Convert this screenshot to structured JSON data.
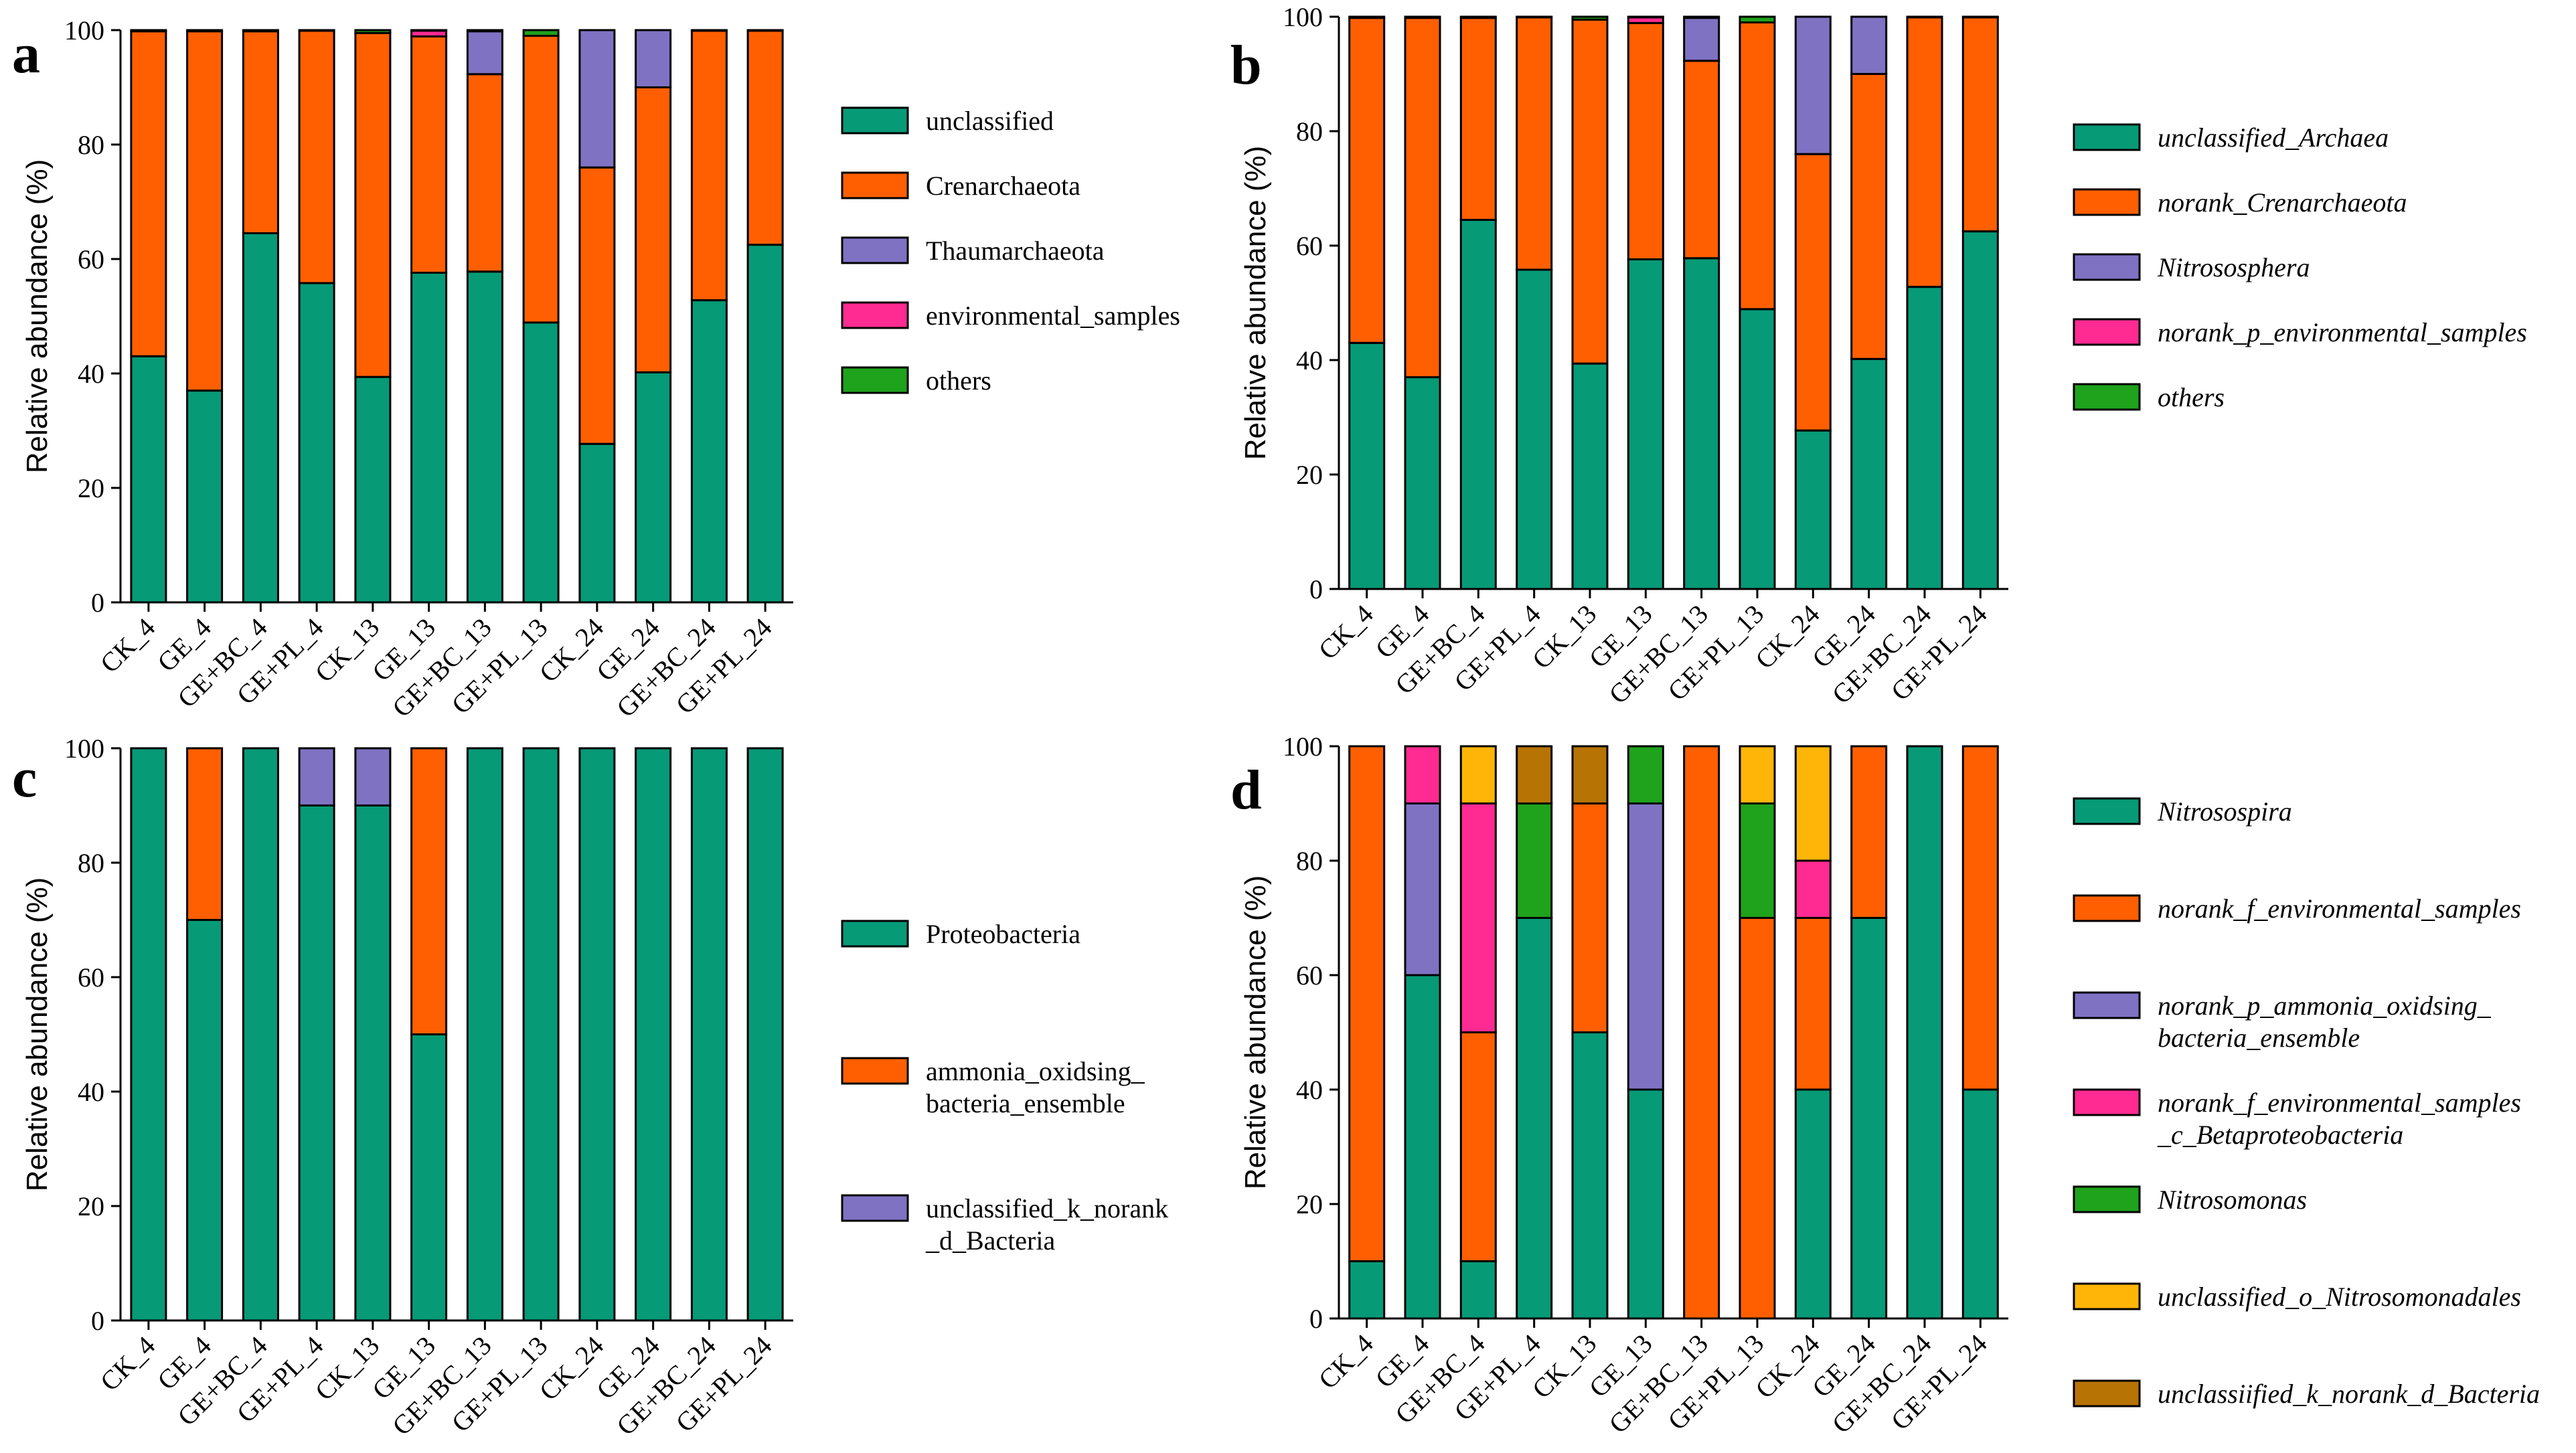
{
  "colors": {
    "teal": "#079A77",
    "orange": "#FF5F00",
    "purple": "#7F72C3",
    "pink": "#FF2A92",
    "green": "#1FA21C",
    "yellow": "#FFB508",
    "brown": "#B87305"
  },
  "chart_data": [
    {
      "panel": "a",
      "type": "bar",
      "stacked": true,
      "ylabel": "Relative abundance (%)",
      "ylim": [
        0,
        100
      ],
      "yticks": [
        "0",
        "20",
        "40",
        "60",
        "80",
        "100"
      ],
      "categories": [
        "CK_4",
        "GE_4",
        "GE+BC_4",
        "GE+PL_4",
        "CK_13",
        "GE_13",
        "GE+BC_13",
        "GE+PL_13",
        "CK_24",
        "GE_24",
        "GE+BC_24",
        "GE+PL_24"
      ],
      "legend_italic": false,
      "series": [
        {
          "name": "unclassified",
          "color": "#079A77",
          "values": [
            43,
            37,
            64.5,
            55.8,
            39.4,
            57.6,
            57.8,
            48.9,
            27.7,
            40.2,
            52.8,
            62.5
          ]
        },
        {
          "name": "Crenarchaeota",
          "color": "#FF5F00",
          "values": [
            56.8,
            62.8,
            35.3,
            44.1,
            60.1,
            41.3,
            34.5,
            50.1,
            48.3,
            49.8,
            47.1,
            37.4
          ]
        },
        {
          "name": "Thaumarchaeota",
          "color": "#7F72C3",
          "values": [
            0,
            0,
            0,
            0,
            0,
            0,
            7.5,
            0,
            24,
            10,
            0,
            0
          ]
        },
        {
          "name": "environmental_samples",
          "color": "#FF2A92",
          "values": [
            0,
            0,
            0,
            0,
            0,
            1,
            0,
            0,
            0,
            0,
            0,
            0
          ]
        },
        {
          "name": "others",
          "color": "#1FA21C",
          "values": [
            0.2,
            0.2,
            0.2,
            0.1,
            0.5,
            0.1,
            0.2,
            1,
            0,
            0,
            0.1,
            0.1
          ]
        }
      ]
    },
    {
      "panel": "b",
      "type": "bar",
      "stacked": true,
      "ylabel": "Relative abundance (%)",
      "ylim": [
        0,
        100
      ],
      "yticks": [
        "0",
        "20",
        "40",
        "60",
        "80",
        "100"
      ],
      "categories": [
        "CK_4",
        "GE_4",
        "GE+BC_4",
        "GE+PL_4",
        "CK_13",
        "GE_13",
        "GE+BC_13",
        "GE+PL_13",
        "CK_24",
        "GE_24",
        "GE+BC_24",
        "GE+PL_24"
      ],
      "legend_italic": true,
      "series": [
        {
          "name": "unclassified_Archaea",
          "color": "#079A77",
          "values": [
            43,
            37,
            64.5,
            55.8,
            39.4,
            57.6,
            57.8,
            48.9,
            27.7,
            40.2,
            52.8,
            62.5
          ]
        },
        {
          "name": "norank_Crenarchaeota",
          "color": "#FF5F00",
          "values": [
            56.8,
            62.8,
            35.3,
            44.1,
            60.1,
            41.3,
            34.5,
            50.1,
            48.3,
            49.8,
            47.1,
            37.4
          ]
        },
        {
          "name": "Nitrososphera",
          "color": "#7F72C3",
          "values": [
            0,
            0,
            0,
            0,
            0,
            0,
            7.5,
            0,
            24,
            10,
            0,
            0
          ]
        },
        {
          "name": "norank_p_environmental_samples",
          "color": "#FF2A92",
          "values": [
            0,
            0,
            0,
            0,
            0,
            1,
            0,
            0,
            0,
            0,
            0,
            0
          ]
        },
        {
          "name": "others",
          "color": "#1FA21C",
          "values": [
            0.2,
            0.2,
            0.2,
            0.1,
            0.5,
            0.1,
            0.2,
            1,
            0,
            0,
            0.1,
            0.1
          ]
        }
      ]
    },
    {
      "panel": "c",
      "type": "bar",
      "stacked": true,
      "ylabel": "Relative abundance (%)",
      "ylim": [
        0,
        100
      ],
      "yticks": [
        "0",
        "20",
        "40",
        "60",
        "80",
        "100"
      ],
      "categories": [
        "CK_4",
        "GE_4",
        "GE+BC_4",
        "GE+PL_4",
        "CK_13",
        "GE_13",
        "GE+BC_13",
        "GE+PL_13",
        "CK_24",
        "GE_24",
        "GE+BC_24",
        "GE+PL_24"
      ],
      "legend_italic": false,
      "series": [
        {
          "name": "Proteobacteria",
          "color": "#079A77",
          "values": [
            100,
            70,
            100,
            90,
            90,
            50,
            100,
            100,
            100,
            100,
            100,
            100
          ]
        },
        {
          "name": "ammonia_oxidsing_\nbacteria_ensemble",
          "color": "#FF5F00",
          "values": [
            0,
            30,
            0,
            0,
            0,
            50,
            0,
            0,
            0,
            0,
            0,
            0
          ]
        },
        {
          "name": "unclassified_k_norank\n_d_Bacteria",
          "color": "#7F72C3",
          "values": [
            0,
            0,
            0,
            10,
            10,
            0,
            0,
            0,
            0,
            0,
            0,
            0
          ]
        }
      ]
    },
    {
      "panel": "d",
      "type": "bar",
      "stacked": true,
      "ylabel": "Relative abundance (%)",
      "ylim": [
        0,
        100
      ],
      "yticks": [
        "0",
        "20",
        "40",
        "60",
        "80",
        "100"
      ],
      "categories": [
        "CK_4",
        "GE_4",
        "GE+BC_4",
        "GE+PL_4",
        "CK_13",
        "GE_13",
        "GE+BC_13",
        "GE+PL_13",
        "CK_24",
        "GE_24",
        "GE+BC_24",
        "GE+PL_24"
      ],
      "legend_italic": true,
      "series": [
        {
          "name": "Nitrosospira",
          "color": "#079A77",
          "values": [
            10,
            60,
            10,
            70,
            50,
            40,
            0,
            0,
            40,
            70,
            100,
            40
          ]
        },
        {
          "name": "norank_f_environmental_samples",
          "color": "#FF5F00",
          "values": [
            90,
            0,
            40,
            0,
            40,
            0,
            100,
            70,
            30,
            30,
            0,
            60
          ]
        },
        {
          "name": "norank_p_ammonia_oxidsing_\nbacteria_ensemble",
          "color": "#7F72C3",
          "values": [
            0,
            30,
            0,
            0,
            0,
            50,
            0,
            0,
            0,
            0,
            0,
            0
          ]
        },
        {
          "name": "norank_f_environmental_samples\n_c_Betaproteobacteria",
          "color": "#FF2A92",
          "values": [
            0,
            10,
            40,
            0,
            0,
            0,
            0,
            0,
            10,
            0,
            0,
            0
          ]
        },
        {
          "name": "Nitrosomonas",
          "color": "#1FA21C",
          "values": [
            0,
            0,
            0,
            20,
            0,
            10,
            0,
            20,
            0,
            0,
            0,
            0
          ]
        },
        {
          "name": "unclassified_o_Nitrosomonadales",
          "color": "#FFB508",
          "values": [
            0,
            0,
            10,
            0,
            0,
            0,
            0,
            10,
            20,
            0,
            0,
            0
          ]
        },
        {
          "name": "unclassiified_k_norank_d_Bacteria",
          "color": "#B87305",
          "values": [
            0,
            0,
            0,
            10,
            10,
            0,
            0,
            0,
            0,
            0,
            0,
            0
          ]
        }
      ]
    }
  ]
}
